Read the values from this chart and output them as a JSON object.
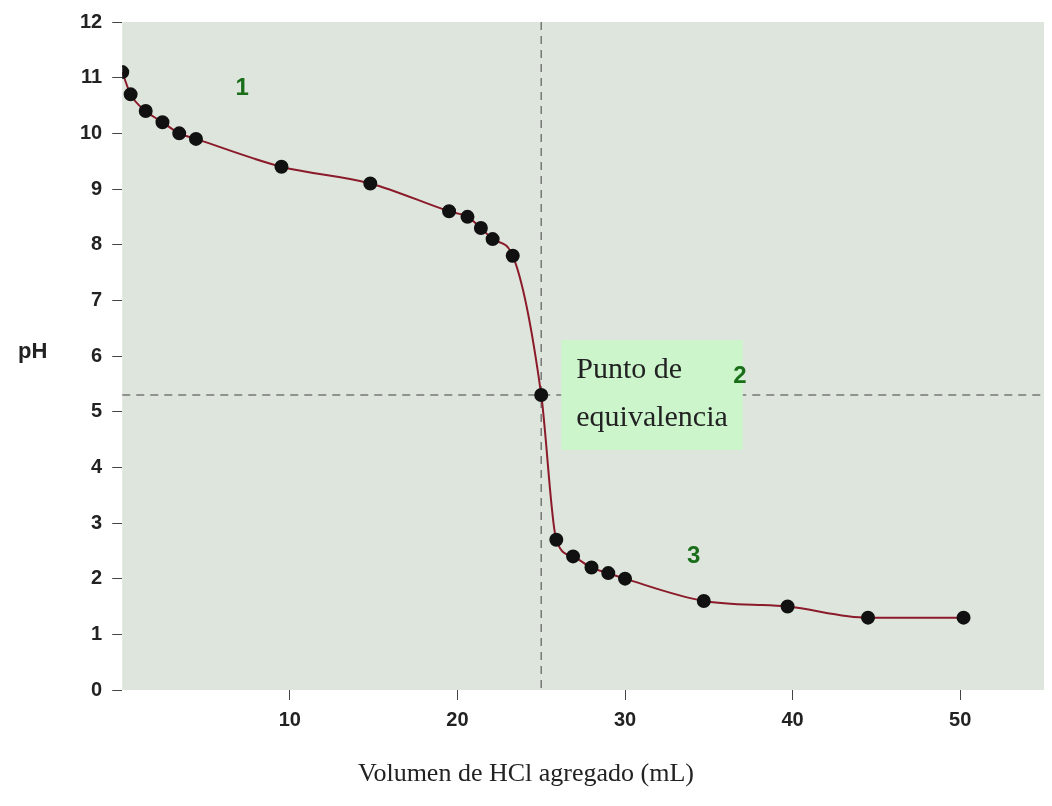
{
  "chart_data": {
    "type": "line",
    "xlabel": "Volumen de HCl agregado (mL)",
    "ylabel": "pH",
    "xlim": [
      0,
      55
    ],
    "xticks": [
      10,
      20,
      30,
      40,
      50
    ],
    "ylim": [
      0,
      12
    ],
    "yticks": [
      0,
      1,
      2,
      3,
      4,
      5,
      6,
      7,
      8,
      9,
      10,
      11,
      12
    ],
    "grid": false,
    "legend": false,
    "marker": "circle",
    "line_style": "solid",
    "series": [
      {
        "color": "#8b1a2a",
        "x": [
          0,
          0.5,
          1.4,
          2.4,
          3.4,
          4.4,
          9.5,
          14.8,
          19.5,
          20.6,
          21.4,
          22.1,
          23.3,
          25.0,
          25.9,
          26.9,
          28.0,
          29.0,
          30.0,
          34.7,
          39.7,
          44.5,
          50.2
        ],
        "values": [
          11.1,
          10.7,
          10.4,
          10.2,
          10.0,
          9.9,
          9.4,
          9.1,
          8.6,
          8.5,
          8.3,
          8.1,
          7.8,
          5.3,
          2.7,
          2.4,
          2.2,
          2.1,
          2.0,
          1.6,
          1.5,
          1.3,
          1.3
        ]
      }
    ],
    "ref_lines": [
      {
        "axis": "y",
        "value": 5.3,
        "line_style": "dashed",
        "color": "#777777"
      },
      {
        "axis": "x",
        "value": 25,
        "line_style": "dashed",
        "color": "#777777"
      }
    ],
    "annotations": [
      {
        "text": "Punto de equivalencia",
        "x": 25,
        "y": 5.3
      },
      "1",
      "2",
      "3"
    ]
  }
}
